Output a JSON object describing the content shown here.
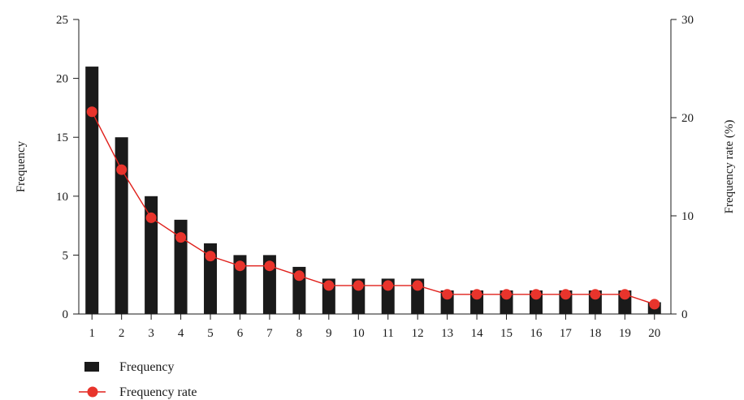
{
  "chart_data": {
    "type": "bar",
    "categories": [
      "1",
      "2",
      "3",
      "4",
      "5",
      "6",
      "7",
      "8",
      "9",
      "10",
      "11",
      "12",
      "13",
      "14",
      "15",
      "16",
      "17",
      "18",
      "19",
      "20"
    ],
    "series": [
      {
        "name": "Frequency",
        "type": "bar",
        "axis": "left",
        "values": [
          21,
          15,
          10,
          8,
          6,
          5,
          5,
          4,
          3,
          3,
          3,
          3,
          2,
          2,
          2,
          2,
          2,
          2,
          2,
          1
        ]
      },
      {
        "name": "Frequency rate",
        "type": "line",
        "axis": "right",
        "values": [
          20.6,
          14.7,
          9.8,
          7.8,
          5.9,
          4.9,
          4.9,
          3.9,
          2.9,
          2.9,
          2.9,
          2.9,
          2.0,
          2.0,
          2.0,
          2.0,
          2.0,
          2.0,
          2.0,
          1.0
        ]
      }
    ],
    "title": "",
    "xlabel": "",
    "ylabel": "Frequency",
    "y2label": "Frequency rate (%)",
    "ylim": [
      0,
      25
    ],
    "y2lim": [
      0,
      30
    ],
    "yticks": [
      0,
      5,
      10,
      15,
      20,
      25
    ],
    "y2ticks": [
      0,
      10,
      20,
      30
    ],
    "grid": false,
    "legend_position": "bottom-left",
    "colors": {
      "bar": "#1a1a1a",
      "line": "#e0201b",
      "marker": "#e8342c"
    }
  }
}
